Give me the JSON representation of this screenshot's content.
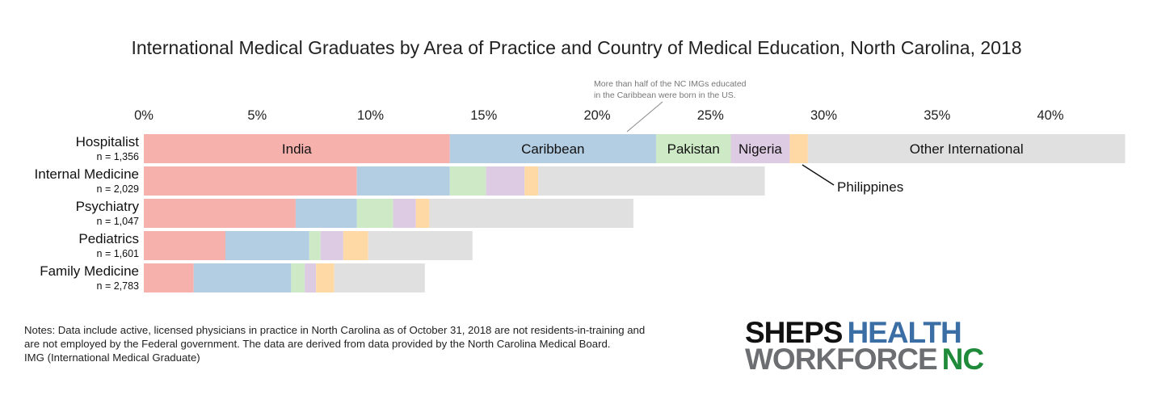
{
  "chart_data": {
    "type": "bar",
    "orientation": "horizontal",
    "stacked": true,
    "title": "International Medical Graduates by Area of Practice and Country of Medical Education, North Carolina, 2018",
    "categories": [
      "Hospitalist",
      "Internal Medicine",
      "Psychiatry",
      "Pediatrics",
      "Family Medicine"
    ],
    "category_n": [
      "n = 1,356",
      "n = 2,029",
      "n = 1,047",
      "n = 1,601",
      "n = 2,783"
    ],
    "xlim": [
      0,
      43
    ],
    "xticks": [
      0,
      5,
      10,
      15,
      20,
      25,
      30,
      35,
      40
    ],
    "xtick_labels": [
      "0%",
      "5%",
      "10%",
      "15%",
      "20%",
      "25%",
      "30%",
      "35%",
      "40%"
    ],
    "x_axis_position": "top",
    "grid": false,
    "legend": "inline labels on first bar",
    "series": [
      {
        "name": "India",
        "color": "#f7b1ad",
        "values": [
          13.5,
          9.4,
          6.7,
          3.6,
          2.2
        ]
      },
      {
        "name": "Caribbean",
        "color": "#b3cde3",
        "values": [
          9.1,
          4.1,
          2.7,
          3.7,
          4.3
        ]
      },
      {
        "name": "Pakistan",
        "color": "#cde9c6",
        "values": [
          3.3,
          1.6,
          1.6,
          0.5,
          0.6
        ]
      },
      {
        "name": "Nigeria",
        "color": "#ddcae3",
        "values": [
          2.6,
          1.7,
          1.0,
          1.0,
          0.5
        ]
      },
      {
        "name": "Philippines",
        "color": "#fed9a6",
        "values": [
          0.8,
          0.6,
          0.6,
          1.1,
          0.8
        ]
      },
      {
        "name": "Other International",
        "color": "#e0e0e0",
        "values": [
          14.0,
          10.0,
          9.0,
          4.6,
          4.0
        ]
      }
    ],
    "annotations": {
      "caribbean_note_line1": "More than half of the NC IMGs educated",
      "caribbean_note_line2": "in the Caribbean were born in the US.",
      "philippines_label": "Philippines"
    }
  },
  "notes": {
    "line1": "Notes: Data include active, licensed physicians in practice in North Carolina as of October 31, 2018 are not residents-in-training and",
    "line2": "are not employed by the Federal government. The data are derived from data provided by the North Carolina Medical Board.",
    "line3": "IMG (International Medical Graduate)"
  },
  "logo": {
    "word1": "SHEPS",
    "word2": "HEALTH",
    "word3": "WORKFORCE",
    "word4": "NC",
    "color_dark": "#111111",
    "color_blue": "#3a6ea5",
    "color_gray": "#6d6e71",
    "color_green": "#1f8a3a"
  }
}
